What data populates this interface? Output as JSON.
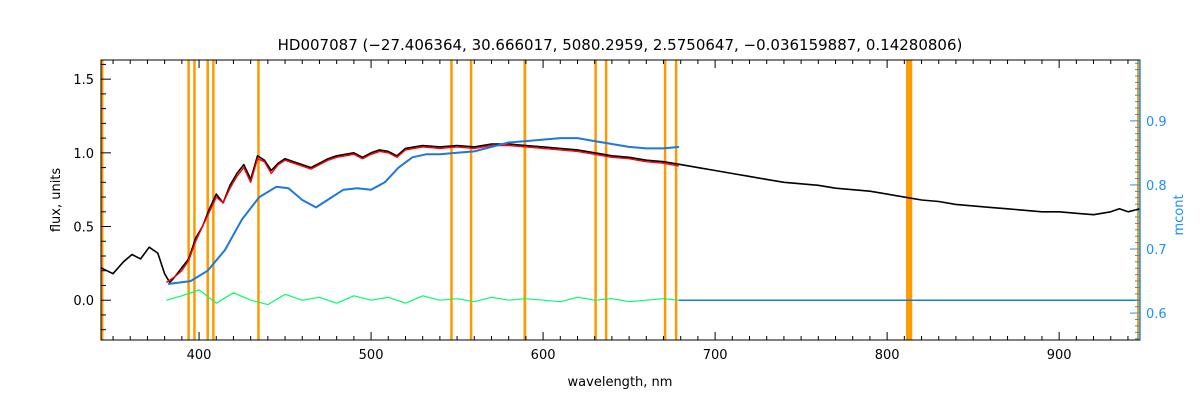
{
  "chart_data": {
    "type": "line",
    "title": "HD007087     (−27.406364, 30.666017, 5080.2959, 2.5750647, −0.036159887, 0.14280806)",
    "xlabel": "wavelength, nm",
    "ylabel": "flux, units",
    "y2label": "mcont",
    "xlim": [
      343,
      947
    ],
    "ylim": [
      -0.27,
      1.63
    ],
    "y2lim": [
      0.558,
      0.995
    ],
    "xticks": [
      400,
      500,
      600,
      700,
      800,
      900
    ],
    "yticks": [
      0.0,
      0.5,
      1.0,
      1.5
    ],
    "ytick_labels": [
      "0.0",
      "0.5",
      "1.0",
      "1.5"
    ],
    "y2ticks": [
      0.6,
      0.7,
      0.8,
      0.9
    ],
    "y2tick_labels": [
      "0.6",
      "0.7",
      "0.8",
      "0.9"
    ],
    "grid": false,
    "colors": {
      "observed": "#000000",
      "model": "#ff0000",
      "continuum": "#1e78dc",
      "residuals": "#00ff66",
      "masks": "#ff9900",
      "right_axis": "#1e90ff"
    },
    "masked_regions_nm": [
      [
        393.2,
        393.8
      ],
      [
        396.6,
        397.2
      ],
      [
        404.3,
        404.9
      ],
      [
        407.6,
        408.2
      ],
      [
        433.8,
        434.5
      ],
      [
        546.0,
        546.6
      ],
      [
        557.4,
        558.0
      ],
      [
        588.6,
        590.2
      ],
      [
        629.8,
        630.4
      ],
      [
        635.9,
        636.5
      ],
      [
        670.2,
        670.8
      ],
      [
        676.6,
        677.4
      ],
      [
        811.0,
        814.6
      ]
    ],
    "series": [
      {
        "role": "observed",
        "x": [
          343,
          350,
          356,
          361,
          366,
          371,
          376,
          380,
          383,
          386,
          390,
          394,
          398,
          402,
          406,
          410,
          414,
          418,
          422,
          426,
          430,
          434,
          438,
          442,
          446,
          450,
          455,
          460,
          465,
          470,
          475,
          480,
          485,
          490,
          495,
          500,
          505,
          510,
          515,
          520,
          525,
          530,
          540,
          550,
          560,
          570,
          580,
          590,
          600,
          610,
          620,
          630,
          640,
          650,
          660,
          670,
          680,
          690,
          700,
          710,
          720,
          730,
          740,
          750,
          760,
          770,
          780,
          790,
          800,
          810,
          820,
          830,
          840,
          850,
          860,
          870,
          880,
          890,
          900,
          910,
          920,
          930,
          935,
          940,
          947
        ],
        "y": [
          0.22,
          0.18,
          0.26,
          0.31,
          0.28,
          0.36,
          0.32,
          0.18,
          0.12,
          0.16,
          0.22,
          0.28,
          0.42,
          0.5,
          0.62,
          0.72,
          0.66,
          0.78,
          0.86,
          0.92,
          0.82,
          0.98,
          0.95,
          0.88,
          0.93,
          0.96,
          0.94,
          0.92,
          0.9,
          0.93,
          0.96,
          0.98,
          0.99,
          1.0,
          0.97,
          1.0,
          1.02,
          1.01,
          0.98,
          1.03,
          1.04,
          1.05,
          1.04,
          1.05,
          1.04,
          1.06,
          1.06,
          1.05,
          1.04,
          1.03,
          1.02,
          1.0,
          0.98,
          0.97,
          0.95,
          0.94,
          0.92,
          0.9,
          0.88,
          0.86,
          0.84,
          0.82,
          0.8,
          0.79,
          0.78,
          0.76,
          0.75,
          0.74,
          0.72,
          0.7,
          0.68,
          0.67,
          0.65,
          0.64,
          0.63,
          0.62,
          0.61,
          0.6,
          0.6,
          0.59,
          0.58,
          0.6,
          0.62,
          0.6,
          0.62
        ]
      },
      {
        "role": "model",
        "x": [
          381,
          386,
          390,
          394,
          398,
          402,
          406,
          410,
          414,
          418,
          422,
          426,
          430,
          434,
          438,
          442,
          446,
          450,
          455,
          460,
          465,
          470,
          475,
          480,
          485,
          490,
          495,
          500,
          505,
          510,
          515,
          520,
          525,
          530,
          540,
          550,
          560,
          570,
          580,
          590,
          600,
          610,
          620,
          630,
          640,
          650,
          660,
          670,
          679
        ],
        "y": [
          0.12,
          0.16,
          0.2,
          0.27,
          0.4,
          0.5,
          0.6,
          0.7,
          0.66,
          0.76,
          0.84,
          0.9,
          0.8,
          0.96,
          0.94,
          0.86,
          0.92,
          0.95,
          0.93,
          0.91,
          0.89,
          0.92,
          0.95,
          0.97,
          0.98,
          0.99,
          0.96,
          0.99,
          1.01,
          1.0,
          0.97,
          1.02,
          1.03,
          1.04,
          1.03,
          1.04,
          1.03,
          1.05,
          1.05,
          1.04,
          1.03,
          1.02,
          1.01,
          0.99,
          0.97,
          0.96,
          0.94,
          0.93,
          0.91
        ]
      },
      {
        "role": "continuum",
        "x": [
          382,
          395,
          405,
          415,
          425,
          435,
          445,
          452,
          460,
          468,
          476,
          484,
          492,
          500,
          508,
          516,
          524,
          532,
          540,
          550,
          560,
          570,
          580,
          590,
          600,
          610,
          620,
          630,
          640,
          650,
          660,
          670,
          679
        ],
        "y": [
          0.11,
          0.13,
          0.2,
          0.34,
          0.55,
          0.7,
          0.77,
          0.76,
          0.68,
          0.63,
          0.69,
          0.75,
          0.76,
          0.75,
          0.8,
          0.9,
          0.97,
          0.99,
          0.99,
          1.0,
          1.01,
          1.04,
          1.07,
          1.08,
          1.09,
          1.1,
          1.1,
          1.08,
          1.06,
          1.04,
          1.03,
          1.03,
          1.04
        ]
      },
      {
        "role": "residuals",
        "x": [
          381,
          390,
          400,
          410,
          420,
          430,
          440,
          450,
          460,
          470,
          480,
          490,
          500,
          510,
          520,
          530,
          540,
          550,
          560,
          570,
          580,
          590,
          600,
          610,
          620,
          630,
          640,
          650,
          660,
          670,
          679
        ],
        "y": [
          0.0,
          0.03,
          0.07,
          -0.02,
          0.05,
          0.0,
          -0.03,
          0.04,
          0.0,
          0.02,
          -0.02,
          0.03,
          0.0,
          0.02,
          -0.02,
          0.03,
          0.0,
          0.01,
          -0.01,
          0.02,
          0.0,
          0.01,
          0.0,
          -0.01,
          0.02,
          0.0,
          0.01,
          -0.01,
          0.0,
          0.01,
          0.0
        ]
      },
      {
        "role": "baseline",
        "x": [
          679,
          947
        ],
        "y": [
          0.0,
          0.0
        ]
      }
    ]
  }
}
